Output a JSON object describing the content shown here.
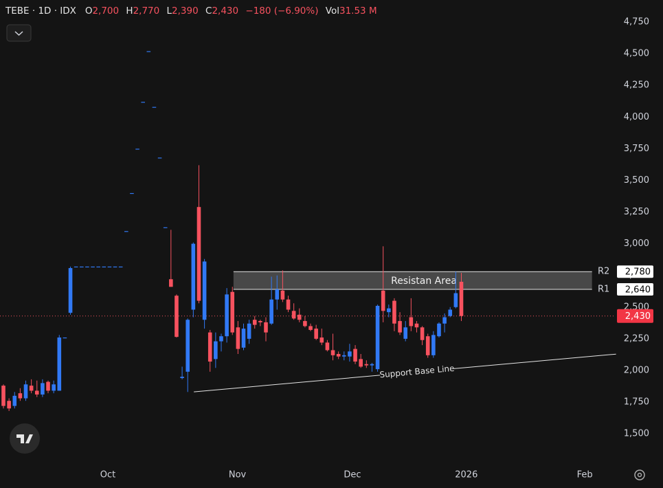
{
  "header": {
    "symbol": "TEBE · 1D · IDX",
    "ohlc": [
      {
        "key": "O",
        "value": "2,700"
      },
      {
        "key": "H",
        "value": "2,770"
      },
      {
        "key": "L",
        "value": "2,390"
      },
      {
        "key": "C",
        "value": "2,430"
      }
    ],
    "change": "−180 (−6.90%)",
    "volume": {
      "key": "Vol",
      "value": "31.53 M"
    }
  },
  "chart_data": {
    "type": "candlestick",
    "up_color": "#3179f5",
    "down_color": "#f7525f",
    "open": [
      1880,
      1760,
      1720,
      1820,
      1780,
      1880,
      1840,
      1810,
      1910,
      1840,
      1840,
      2260,
      2455,
      2820,
      2820,
      2820,
      2820,
      2820,
      2820,
      2820,
      2820,
      2820,
      3100,
      3400,
      3750,
      4120,
      4520,
      4080,
      3680,
      3130,
      2720,
      2590,
      1940,
      1990,
      2480,
      3290,
      2400,
      2300,
      2090,
      2230,
      2270,
      2620,
      2340,
      2180,
      2250,
      2400,
      2390,
      2380,
      2370,
      2560,
      2630,
      2560,
      2470,
      2440,
      2390,
      2350,
      2330,
      2260,
      2220,
      2160,
      2130,
      2110,
      2110,
      2170,
      2090,
      2050,
      2040,
      2010,
      2630,
      2460,
      2550,
      2390,
      2250,
      2420,
      2370,
      2340,
      2270,
      2120,
      2270,
      2370,
      2430,
      2500,
      2700
    ],
    "high": [
      1890,
      1780,
      1830,
      1860,
      1920,
      1930,
      1920,
      1930,
      1920,
      1920,
      2280,
      2260,
      2820,
      2820,
      2820,
      2820,
      2820,
      2820,
      2820,
      2820,
      2820,
      2820,
      3100,
      3400,
      3750,
      4120,
      4520,
      4080,
      3680,
      3130,
      3110,
      2600,
      2030,
      2410,
      3010,
      3620,
      2880,
      2320,
      2300,
      2290,
      2650,
      2660,
      2390,
      2370,
      2400,
      2430,
      2400,
      2420,
      2740,
      2750,
      2790,
      2590,
      2530,
      2490,
      2430,
      2370,
      2360,
      2330,
      2240,
      2290,
      2150,
      2150,
      2210,
      2200,
      2130,
      2080,
      2060,
      2520,
      2980,
      2520,
      2570,
      2460,
      2390,
      2570,
      2390,
      2350,
      2290,
      2310,
      2380,
      2450,
      2500,
      2780,
      2770
    ],
    "low": [
      1700,
      1680,
      1700,
      1760,
      1760,
      1820,
      1790,
      1790,
      1820,
      1820,
      1840,
      2260,
      2440,
      2820,
      2820,
      2820,
      2820,
      2820,
      2820,
      2820,
      2820,
      2820,
      3100,
      3400,
      3750,
      4120,
      4520,
      4080,
      3680,
      3130,
      2660,
      2260,
      1930,
      1830,
      2420,
      2530,
      2330,
      1990,
      2020,
      2150,
      2220,
      2280,
      2130,
      2160,
      2210,
      2330,
      2350,
      2230,
      2360,
      2480,
      2540,
      2460,
      2400,
      2380,
      2340,
      2310,
      2240,
      2200,
      2150,
      2080,
      2090,
      2080,
      2070,
      2050,
      2020,
      2020,
      1990,
      1990,
      2380,
      2420,
      2310,
      2280,
      2230,
      2310,
      2300,
      2200,
      2100,
      2100,
      2260,
      2300,
      2420,
      2490,
      2390
    ],
    "close": [
      1720,
      1700,
      1800,
      1780,
      1890,
      1840,
      1810,
      1900,
      1840,
      1890,
      2260,
      2260,
      2808,
      2820,
      2820,
      2820,
      2820,
      2820,
      2820,
      2820,
      2820,
      2820,
      3100,
      3400,
      3750,
      4120,
      4520,
      4080,
      3680,
      3130,
      2660,
      2265,
      1950,
      2400,
      3000,
      2550,
      2860,
      2070,
      2230,
      2270,
      2600,
      2300,
      2170,
      2330,
      2370,
      2360,
      2380,
      2300,
      2560,
      2640,
      2560,
      2480,
      2410,
      2400,
      2350,
      2320,
      2250,
      2220,
      2160,
      2120,
      2110,
      2120,
      2150,
      2070,
      2030,
      2040,
      2050,
      2510,
      2470,
      2490,
      2370,
      2300,
      2340,
      2350,
      2340,
      2240,
      2120,
      2280,
      2370,
      2420,
      2480,
      2610,
      2430
    ],
    "xlim": [
      -0.615,
      109.5
    ],
    "xticks": [
      {
        "value": 18.7,
        "label": "Oct"
      },
      {
        "value": 41.9,
        "label": "Nov"
      },
      {
        "value": 62.5,
        "label": "Dec"
      },
      {
        "value": 82.9,
        "label": "2026"
      },
      {
        "value": 104.1,
        "label": "Feb"
      }
    ],
    "ylim": [
      1262,
      4924
    ],
    "yticks": [
      {
        "value": 1500,
        "label": "1,500"
      },
      {
        "value": 1750,
        "label": "1,750"
      },
      {
        "value": 2000,
        "label": "2,000"
      },
      {
        "value": 2250,
        "label": "2,250"
      },
      {
        "value": 2500,
        "label": "2,500"
      },
      {
        "value": 2750,
        "label": "2,750"
      },
      {
        "value": 3000,
        "label": "3,000"
      },
      {
        "value": 3250,
        "label": "3,250"
      },
      {
        "value": 3500,
        "label": "3,500"
      },
      {
        "value": 3750,
        "label": "3,750"
      },
      {
        "value": 4000,
        "label": "4,000"
      },
      {
        "value": 4250,
        "label": "4,250"
      },
      {
        "value": 4500,
        "label": "4,500"
      },
      {
        "value": 4750,
        "label": "4,750"
      }
    ],
    "resistance": {
      "label": "Resistan Area",
      "x": [
        41.2,
        105.4
      ],
      "r1": {
        "name": "R1",
        "value": 2640,
        "label": "2,640"
      },
      "r2": {
        "name": "R2",
        "value": 2780,
        "label": "2,780"
      }
    },
    "last_price": {
      "value": 2430,
      "label": "2,430"
    },
    "support": {
      "label": "Support Base Line",
      "x": [
        34.1,
        109.7
      ],
      "y": [
        1831,
        2129
      ]
    }
  }
}
